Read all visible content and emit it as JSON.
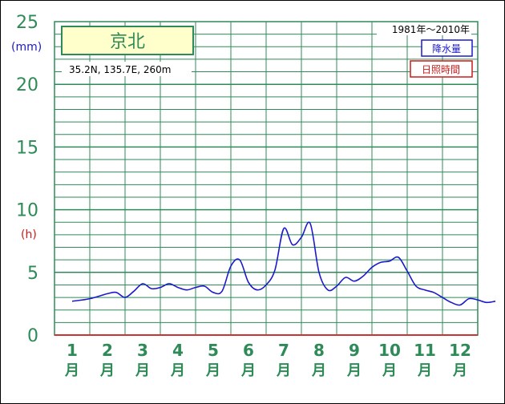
{
  "chart_data": {
    "type": "line",
    "title": "京北",
    "location": "35.2N,  135.7E,  260m",
    "period": "1981年～2010年",
    "y_unit_left": "(mm)",
    "y_unit_right": "(h)",
    "ylim": [
      0,
      25
    ],
    "y_ticks": [
      "0",
      "5",
      "10",
      "15",
      "20",
      "25"
    ],
    "month_labels": [
      "1",
      "2",
      "3",
      "4",
      "5",
      "6",
      "7",
      "8",
      "9",
      "10",
      "11",
      "12"
    ],
    "month_suffix": "月",
    "legend": {
      "precip": "降水量",
      "sunshine": "日照時間"
    },
    "series": [
      {
        "name": "降水量",
        "x": [
          0.5,
          1.0,
          1.5,
          1.75,
          2.0,
          2.25,
          2.5,
          2.75,
          3.0,
          3.25,
          3.5,
          3.75,
          4.0,
          4.25,
          4.5,
          4.75,
          5.0,
          5.25,
          5.5,
          5.75,
          6.0,
          6.25,
          6.5,
          6.75,
          7.0,
          7.25,
          7.5,
          7.75,
          8.0,
          8.25,
          8.5,
          8.75,
          9.0,
          9.25,
          9.5,
          9.75,
          10.0,
          10.25,
          10.5,
          10.75,
          11.0,
          11.25,
          11.5,
          11.75,
          12.0,
          12.25,
          12.5
        ],
        "values": [
          2.7,
          2.9,
          3.3,
          3.4,
          3.0,
          3.5,
          4.1,
          3.7,
          3.8,
          4.1,
          3.8,
          3.6,
          3.8,
          3.9,
          3.4,
          3.5,
          5.5,
          6.0,
          4.2,
          3.6,
          4.0,
          5.2,
          8.5,
          7.2,
          7.8,
          8.9,
          5.0,
          3.6,
          3.9,
          4.6,
          4.3,
          4.7,
          5.4,
          5.8,
          5.9,
          6.2,
          5.1,
          3.9,
          3.6,
          3.4,
          3.0,
          2.6,
          2.4,
          2.9,
          2.8,
          2.6,
          2.7
        ]
      }
    ],
    "colors": {
      "grid": "#2e8b57",
      "line": "#1a1acc",
      "axis_red": "#cc3333",
      "title_bg": "#ffffcc"
    }
  }
}
